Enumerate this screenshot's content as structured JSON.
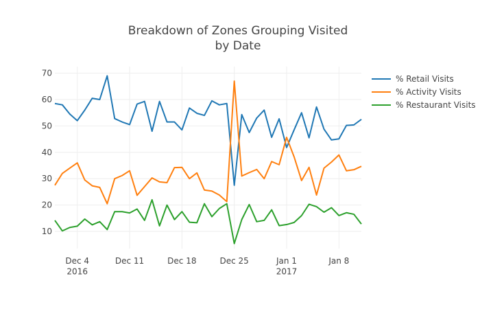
{
  "chart_data": {
    "type": "line",
    "title": "Breakdown of Zones Grouping Visited\nby Date",
    "x": [
      "2016-12-01",
      "2016-12-02",
      "2016-12-03",
      "2016-12-04",
      "2016-12-05",
      "2016-12-06",
      "2016-12-07",
      "2016-12-08",
      "2016-12-09",
      "2016-12-10",
      "2016-12-11",
      "2016-12-12",
      "2016-12-13",
      "2016-12-14",
      "2016-12-15",
      "2016-12-16",
      "2016-12-17",
      "2016-12-18",
      "2016-12-19",
      "2016-12-20",
      "2016-12-21",
      "2016-12-22",
      "2016-12-23",
      "2016-12-24",
      "2016-12-25",
      "2016-12-26",
      "2016-12-27",
      "2016-12-28",
      "2016-12-29",
      "2016-12-30",
      "2016-12-31",
      "2017-01-01",
      "2017-01-02",
      "2017-01-03",
      "2017-01-04",
      "2017-01-05",
      "2017-01-06",
      "2017-01-07",
      "2017-01-08",
      "2017-01-09",
      "2017-01-10",
      "2017-01-11"
    ],
    "series": [
      {
        "name": "% Retail Visits",
        "color": "#1f77b4",
        "values": [
          58.5,
          58,
          54.5,
          52,
          56,
          60.5,
          60,
          69,
          52.8,
          51.5,
          50.5,
          58.3,
          59.3,
          48,
          59.3,
          51.5,
          51.5,
          48.5,
          56.8,
          54.8,
          54,
          59.5,
          58,
          58.5,
          27.5,
          54.3,
          47.5,
          53,
          56,
          45.7,
          52.7,
          41.8,
          48.5,
          55,
          45.5,
          57.2,
          48.8,
          44.7,
          45.1,
          50.2,
          50.4,
          52.5
        ]
      },
      {
        "name": "% Activity Visits",
        "color": "#ff7f0e",
        "values": [
          27.5,
          32,
          34,
          36,
          29.5,
          27.3,
          26.7,
          20.5,
          30,
          31.2,
          33,
          23.7,
          27,
          30.3,
          28.8,
          28.5,
          34.2,
          34.3,
          30,
          32.2,
          25.7,
          25.3,
          23.8,
          21.3,
          67,
          31,
          32.3,
          33.5,
          30,
          36.5,
          35.3,
          45.7,
          38.3,
          29.3,
          34.3,
          23.8,
          34,
          36.3,
          39,
          33,
          33.4,
          34.7
        ]
      },
      {
        "name": "% Restaurant Visits",
        "color": "#2ca02c",
        "values": [
          14.2,
          10.2,
          11.5,
          12,
          14.7,
          12.5,
          13.7,
          10.7,
          17.5,
          17.5,
          17,
          18.5,
          14.2,
          22,
          12.1,
          20,
          14.5,
          17.5,
          13.5,
          13.3,
          20.5,
          15.6,
          18.7,
          20.5,
          5.4,
          14.5,
          20.2,
          13.7,
          14.2,
          18.2,
          12.2,
          12.6,
          13.4,
          16,
          20.3,
          19.4,
          17.3,
          19,
          16,
          17.1,
          16.5,
          12.8
        ]
      }
    ],
    "xlim": [
      "2016-12-01",
      "2017-01-11"
    ],
    "xticks": [
      {
        "value": "2016-12-04",
        "label": "Dec 4\n2016"
      },
      {
        "value": "2016-12-11",
        "label": "Dec 11"
      },
      {
        "value": "2016-12-18",
        "label": "Dec 18"
      },
      {
        "value": "2016-12-25",
        "label": "Dec 25"
      },
      {
        "value": "2017-01-01",
        "label": "Jan 1\n2017"
      },
      {
        "value": "2017-01-08",
        "label": "Jan 8"
      }
    ],
    "ylim": [
      3.5,
      72.5
    ],
    "yticks": [
      10,
      20,
      30,
      40,
      50,
      60,
      70
    ],
    "grid": true,
    "legend": "right"
  }
}
